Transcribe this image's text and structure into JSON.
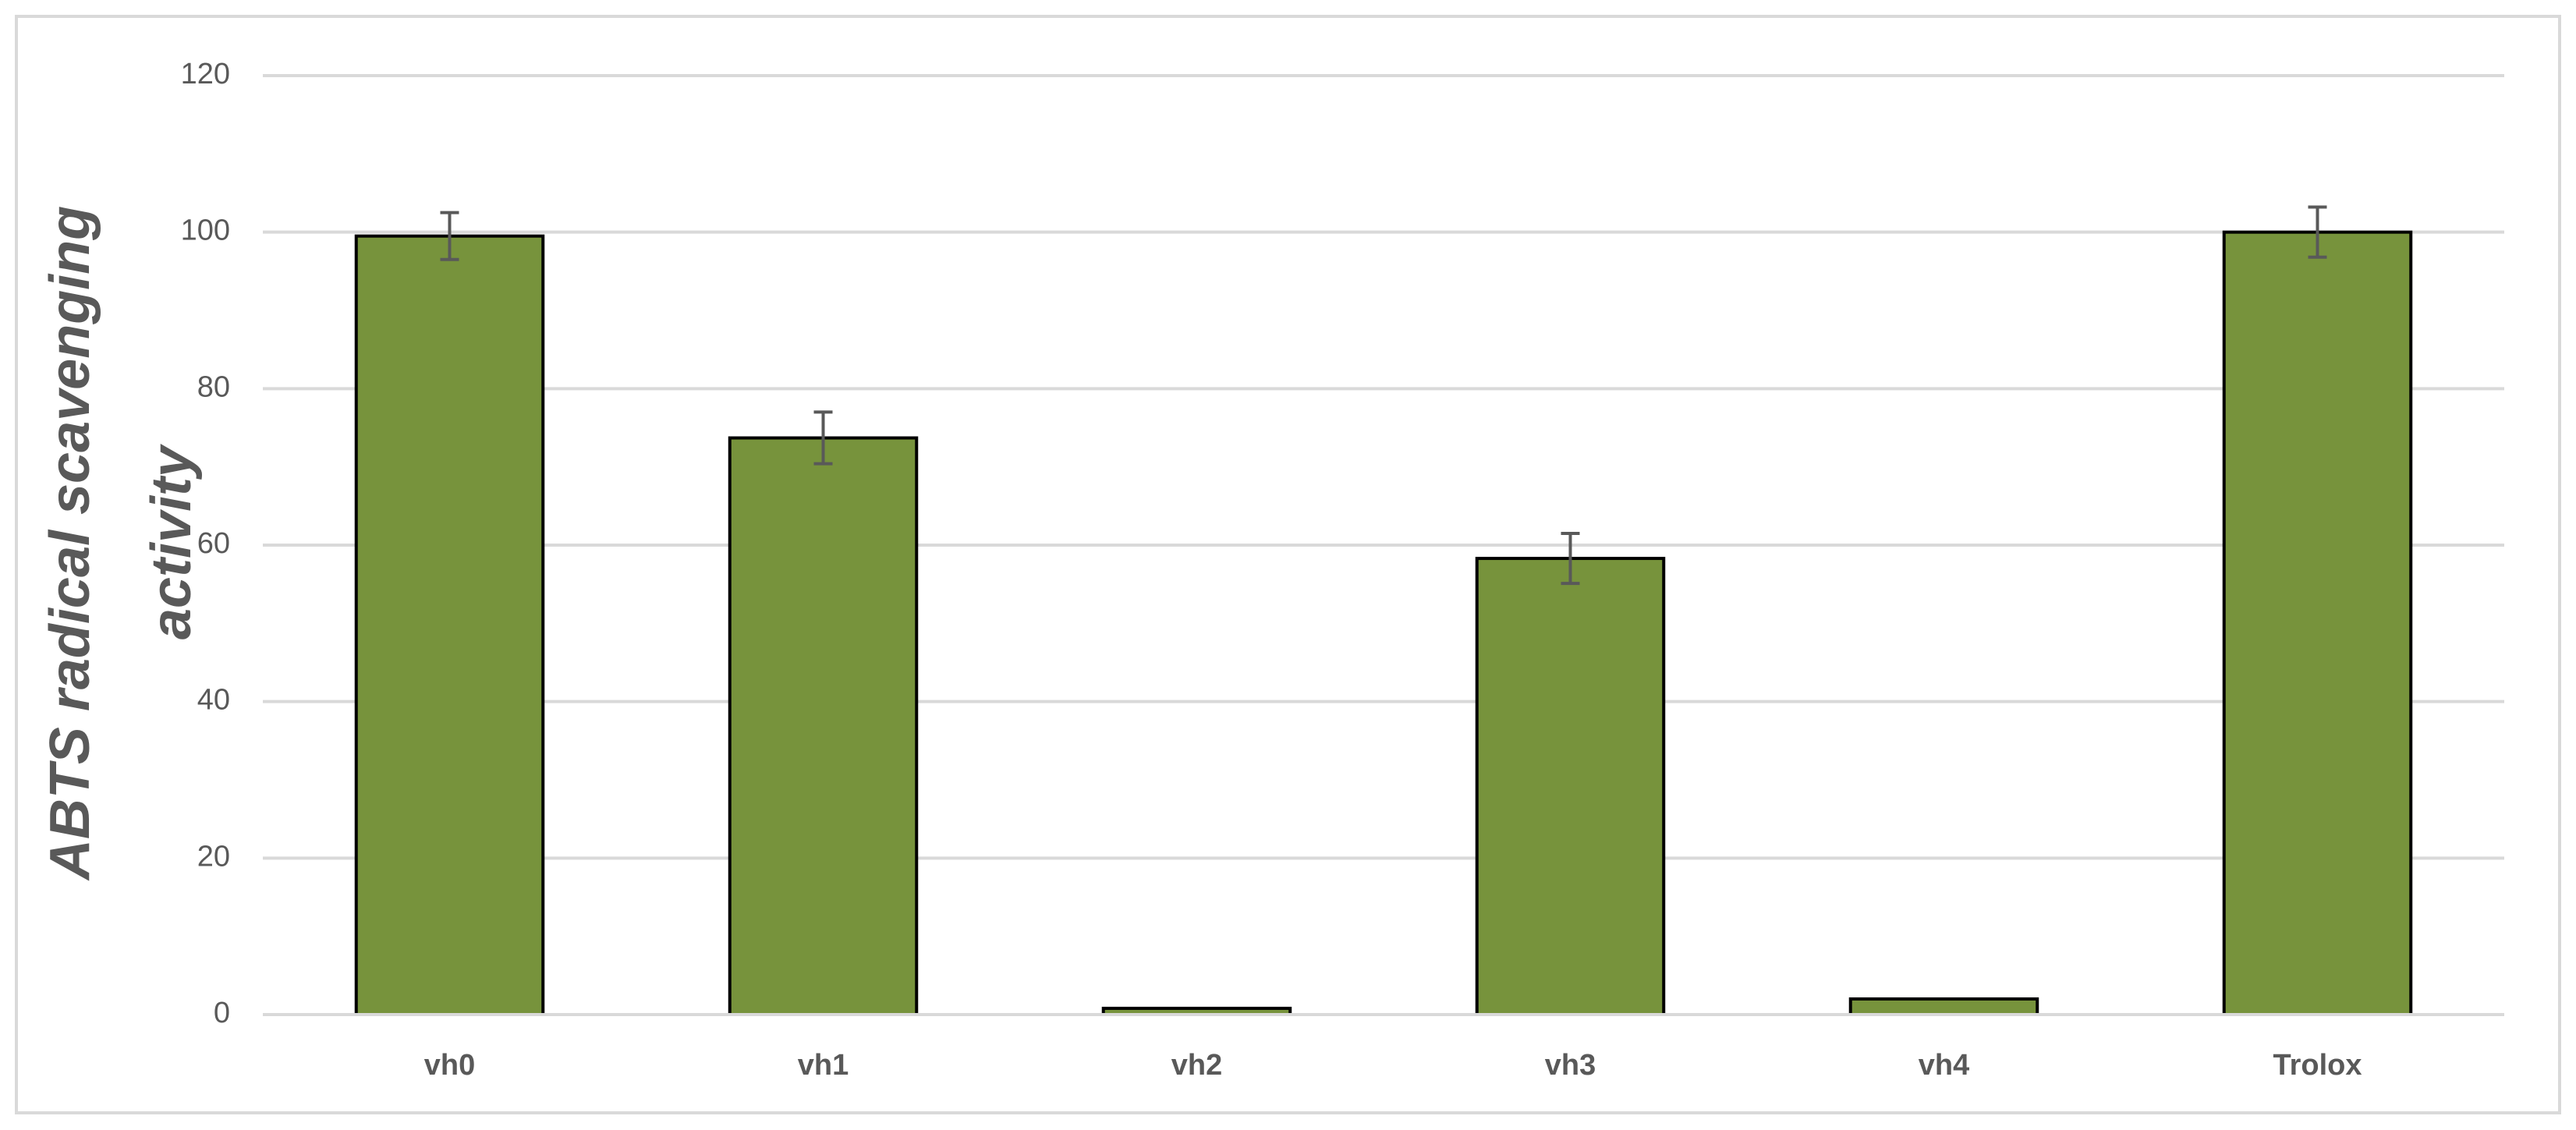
{
  "chart_data": {
    "type": "bar",
    "y_label": [
      "ABTS  radical scavenging",
      "activity"
    ],
    "categories": [
      "vh0",
      "vh1",
      "vh2",
      "vh3",
      "vh4",
      "Trolox"
    ],
    "values": [
      99.5,
      73.7,
      0.8,
      58.3,
      2,
      100
    ],
    "errors": [
      3,
      3.3,
      null,
      3.2,
      null,
      3.2
    ],
    "color": "#77933c",
    "ylim": [
      0,
      120
    ],
    "yticks": [
      0,
      20,
      40,
      60,
      80,
      100,
      120
    ],
    "grid": true
  }
}
